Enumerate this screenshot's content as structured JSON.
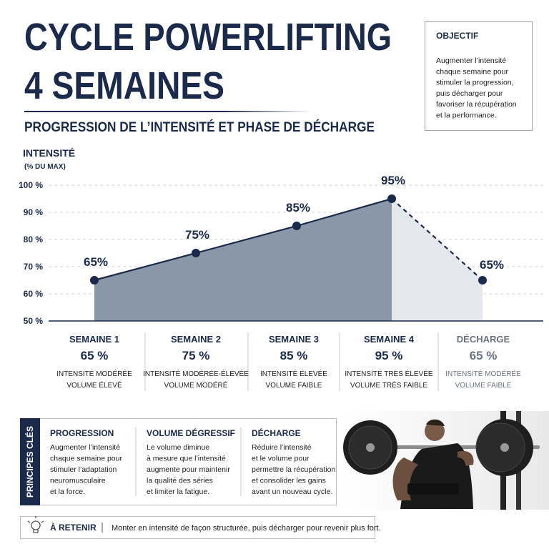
{
  "header": {
    "title_lines": [
      "CYCLE POWERLIFTING",
      "4 SEMAINES"
    ],
    "subtitle": "PROGRESSION DE L’INTENSITÉ ET PHASE DE DÉCHARGE"
  },
  "objective": {
    "title": "OBJECTIF",
    "lines": [
      "Augmenter l’intensité",
      "chaque semaine pour",
      "stimuler la progression,",
      "puis décharger pour",
      "favoriser la récupération",
      "et la performance."
    ]
  },
  "chart_data": {
    "type": "line",
    "y_label": "INTENSITÉ",
    "y_sublabel": "(% DU MAX)",
    "categories": [
      "SEMAINE 1",
      "SEMAINE 2",
      "SEMAINE 3",
      "SEMAINE 4",
      "DÉCHARGE"
    ],
    "values": [
      65,
      75,
      85,
      95,
      65
    ],
    "value_labels": [
      "65%",
      "75%",
      "85%",
      "95%",
      "65%"
    ],
    "ylim": [
      50,
      105
    ],
    "yticks": [
      {
        "value": 50,
        "label": "50 %"
      },
      {
        "value": 60,
        "label": "60 %"
      },
      {
        "value": 70,
        "label": "70 %"
      },
      {
        "value": 80,
        "label": "80 %"
      },
      {
        "value": 90,
        "label": "90 %"
      },
      {
        "value": 100,
        "label": "100 %"
      }
    ],
    "color": "#1b2a4a",
    "area_color": "#8a97a8",
    "deload_color": "#e4e7eb",
    "grid": true
  },
  "weeks": [
    {
      "intensity": "65 %",
      "notes": [
        "INTENSITÉ MODÉRÉE",
        "VOLUME ÉLEVÉ"
      ]
    },
    {
      "intensity": "75 %",
      "notes": [
        "INTENSITÉ MODÉRÉE-ÉLEVÉE",
        "VOLUME MODÉRÉ"
      ]
    },
    {
      "intensity": "85 %",
      "notes": [
        "INTENSITÉ ÉLEVÉE",
        "VOLUME FAIBLE"
      ]
    },
    {
      "intensity": "95 %",
      "notes": [
        "INTENSITÉ TRÈS ÉLEVÉE",
        "VOLUME TRÈS FAIBLE"
      ]
    },
    {
      "intensity": "65 %",
      "notes": [
        "INTENSITÉ MODÉRÉE",
        "VOLUME FAIBLE"
      ]
    }
  ],
  "principles": {
    "tab": "PRINCIPES CLÉS",
    "items": [
      {
        "title": "PROGRESSION",
        "lines": [
          "Augmenter l’intensité",
          "chaque semaine pour",
          "stimuler l’adaptation",
          "neuromusculaire",
          "et la force."
        ]
      },
      {
        "title": "VOLUME DÉGRESSIF",
        "lines": [
          "Le volume diminue",
          "à mesure que l’intensité",
          "augmente pour maintenir",
          "la qualité des séries",
          "et limiter la fatigue."
        ]
      },
      {
        "title": "DÉCHARGE",
        "lines": [
          "Réduire l’intensité",
          "et le volume pour",
          "permettre la récupération",
          "et consolider les gains",
          "avant un nouveau cycle."
        ]
      }
    ]
  },
  "takeaway": {
    "label": "À RETENIR",
    "text": "Monter en intensité de façon structurée, puis décharger pour revenir plus fort."
  }
}
